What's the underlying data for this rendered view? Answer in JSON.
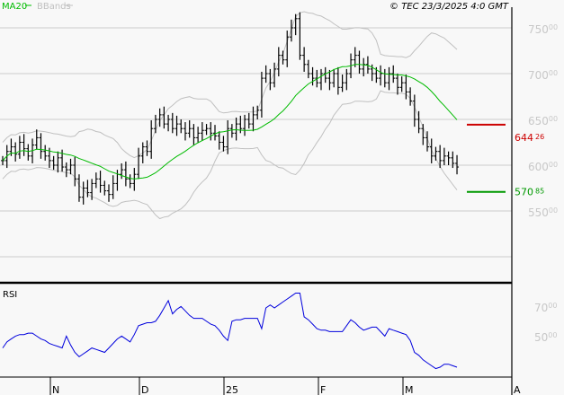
{
  "header": {
    "legend_ma": "MA20",
    "legend_bb": "BBands",
    "copyright": "© TEC 23/3/2025 4:0 GMT"
  },
  "colors": {
    "ma": "#00bb00",
    "bb": "#c0c0c0",
    "bars": "#000000",
    "rsi": "#0000dd",
    "resistance": "#cc0000",
    "support": "#009900"
  },
  "chart_data": [
    {
      "type": "ohlc",
      "ylim": [
        480,
        780
      ],
      "yticks": [
        {
          "int": "750",
          "dec": "00",
          "v": 750
        },
        {
          "int": "700",
          "dec": "00",
          "v": 700
        },
        {
          "int": "650",
          "dec": "00",
          "v": 650
        },
        {
          "int": "600",
          "dec": "00",
          "v": 600
        },
        {
          "int": "550",
          "dec": "00",
          "v": 550
        }
      ],
      "extra_gridline": 500,
      "xticks": [
        "N",
        "D",
        "25",
        "F",
        "M",
        "A"
      ],
      "close": [
        605,
        615,
        620,
        612,
        625,
        618,
        610,
        622,
        630,
        615,
        610,
        605,
        600,
        608,
        598,
        595,
        600,
        585,
        565,
        575,
        570,
        580,
        585,
        578,
        572,
        568,
        580,
        590,
        595,
        585,
        580,
        590,
        610,
        620,
        615,
        640,
        650,
        655,
        645,
        650,
        640,
        645,
        640,
        635,
        640,
        630,
        635,
        638,
        640,
        635,
        632,
        625,
        620,
        640,
        635,
        645,
        640,
        650,
        645,
        655,
        660,
        695,
        700,
        690,
        705,
        720,
        715,
        740,
        750,
        760,
        720,
        710,
        700,
        695,
        690,
        700,
        695,
        690,
        700,
        685,
        690,
        700,
        715,
        720,
        705,
        710,
        705,
        700,
        695,
        700,
        690,
        700,
        695,
        685,
        690,
        680,
        670,
        650,
        640,
        630,
        620,
        610,
        615,
        605,
        610,
        608,
        602,
        598
      ],
      "indicators": [
        "MA20",
        "BBands"
      ],
      "levels": [
        {
          "name": "resistance",
          "value": 644.26,
          "int": "644",
          "dec": "26"
        },
        {
          "name": "support",
          "value": 570.85,
          "int": "570",
          "dec": "85"
        }
      ]
    },
    {
      "type": "line",
      "title": "RSI",
      "ylim": [
        20,
        90
      ],
      "yticks": [
        {
          "int": "70",
          "dec": "00",
          "v": 70
        },
        {
          "int": "50",
          "dec": "00",
          "v": 50
        }
      ],
      "values": [
        43,
        47,
        49,
        51,
        52,
        52,
        53,
        53,
        51,
        49,
        48,
        46,
        45,
        44,
        43,
        51,
        45,
        40,
        37,
        39,
        41,
        43,
        42,
        41,
        40,
        43,
        46,
        49,
        51,
        49,
        47,
        52,
        58,
        59,
        60,
        60,
        61,
        65,
        70,
        75,
        66,
        69,
        71,
        68,
        65,
        63,
        63,
        63,
        61,
        59,
        58,
        55,
        51,
        48,
        61,
        62,
        62,
        63,
        63,
        63,
        63,
        56,
        70,
        72,
        70,
        72,
        74,
        76,
        78,
        80,
        80,
        64,
        62,
        59,
        56,
        55,
        55,
        54,
        54,
        54,
        54,
        58,
        62,
        60,
        57,
        55,
        56,
        57,
        57,
        54,
        51,
        56,
        55,
        54,
        53,
        52,
        48,
        40,
        38,
        35,
        33,
        31,
        29,
        30,
        32,
        32,
        31,
        30
      ]
    }
  ]
}
